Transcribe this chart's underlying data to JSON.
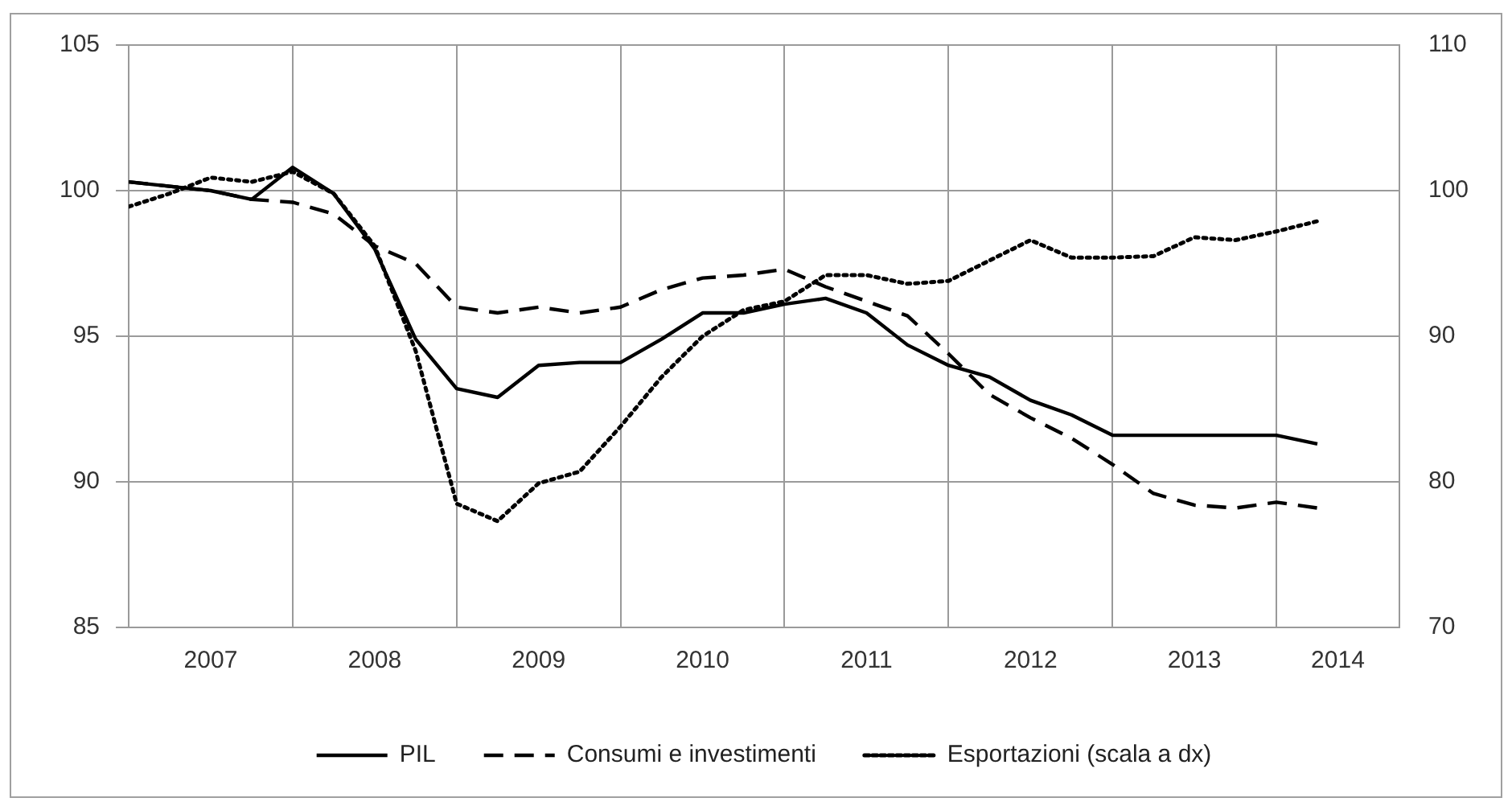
{
  "chart_data": {
    "type": "line",
    "x": [
      2007,
      2007.25,
      2007.5,
      2007.75,
      2008,
      2008.25,
      2008.5,
      2008.75,
      2009,
      2009.25,
      2009.5,
      2009.75,
      2010,
      2010.25,
      2010.5,
      2010.75,
      2011,
      2011.25,
      2011.5,
      2011.75,
      2012,
      2012.25,
      2012.5,
      2012.75,
      2013,
      2013.25,
      2013.5,
      2013.75,
      2014,
      2014.25
    ],
    "series": [
      {
        "name": "PIL",
        "color": "#000000",
        "line_style": "solid",
        "values": [
          100.3,
          100.15,
          100.0,
          99.7,
          100.8,
          99.9,
          98.0,
          94.9,
          93.2,
          92.9,
          94.0,
          94.1,
          94.1,
          94.9,
          95.8,
          95.8,
          96.1,
          96.3,
          95.8,
          94.7,
          94.0,
          93.6,
          92.8,
          92.3,
          91.6,
          91.6,
          91.6,
          91.6,
          91.6,
          91.3
        ]
      },
      {
        "name": "Consumi e investimenti",
        "color": "#000000",
        "line_style": "dashed",
        "values": [
          100.3,
          100.15,
          100.0,
          99.7,
          99.6,
          99.2,
          98.1,
          97.5,
          96.0,
          95.8,
          96.0,
          95.8,
          96.0,
          96.6,
          97.0,
          97.1,
          97.3,
          96.7,
          96.2,
          95.7,
          94.4,
          93.0,
          92.2,
          91.5,
          90.6,
          89.6,
          89.2,
          89.1,
          89.3,
          89.1
        ]
      },
      {
        "name": "Esportazioni (scala a dx)",
        "color": "#000000",
        "line_style": "dotted",
        "axis": "y2",
        "values": [
          98.9,
          99.8,
          100.9,
          100.6,
          101.3,
          99.8,
          96.2,
          89.0,
          78.5,
          77.3,
          79.9,
          80.7,
          83.8,
          87.2,
          90.0,
          91.8,
          92.4,
          94.2,
          94.2,
          93.6,
          93.8,
          95.2,
          96.6,
          95.4,
          95.4,
          95.5,
          96.8,
          96.6,
          97.2,
          97.9
        ]
      }
    ],
    "xlim": [
      2007,
      2014.75
    ],
    "xticks": [
      {
        "value": 2007.5,
        "label": "2007"
      },
      {
        "value": 2008,
        "label": null
      },
      {
        "value": 2008.5,
        "label": "2008"
      },
      {
        "value": 2009,
        "label": null
      },
      {
        "value": 2009.5,
        "label": "2009"
      },
      {
        "value": 2010,
        "label": null
      },
      {
        "value": 2010.5,
        "label": "2010"
      },
      {
        "value": 2011,
        "label": null
      },
      {
        "value": 2011.5,
        "label": "2011"
      },
      {
        "value": 2012,
        "label": null
      },
      {
        "value": 2012.5,
        "label": "2012"
      },
      {
        "value": 2013,
        "label": null
      },
      {
        "value": 2013.5,
        "label": "2013"
      },
      {
        "value": 2014,
        "label": null
      },
      {
        "value": 2014.375,
        "label": "2014"
      }
    ],
    "ylim": [
      85,
      105
    ],
    "yticks": [
      85,
      90,
      95,
      100,
      105
    ],
    "y2lim": [
      70,
      110
    ],
    "y2ticks": [
      70,
      80,
      90,
      100,
      110
    ],
    "grid": true,
    "legend": "bottom",
    "marker": "none"
  }
}
